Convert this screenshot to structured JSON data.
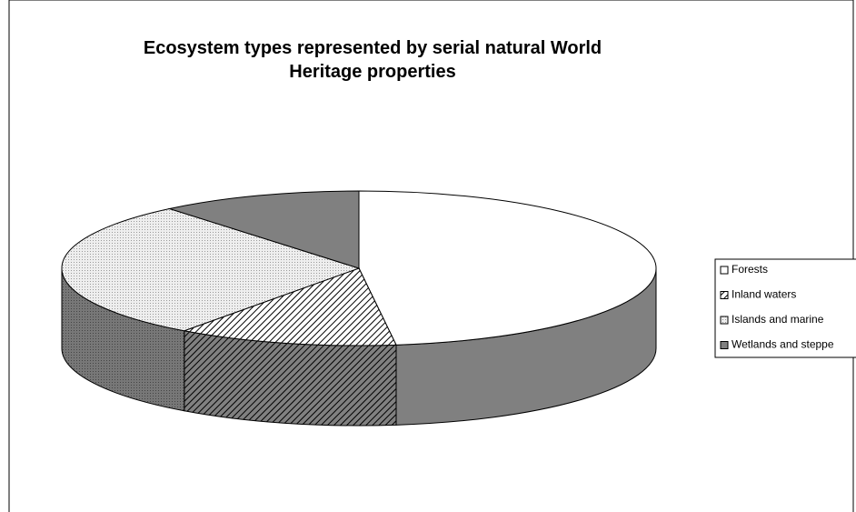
{
  "chart_data": {
    "type": "pie3d",
    "title": "Ecosystem types represented by serial natural World Heritage properties",
    "categories": [
      "Forests",
      "Inland waters",
      "Islands and marine",
      "Wetlands and steppe"
    ],
    "values": [
      48,
      12,
      29,
      11
    ],
    "colors": [
      "#ffffff",
      "hatch",
      "#dcdcdc",
      "#808080"
    ],
    "legend": "right"
  }
}
